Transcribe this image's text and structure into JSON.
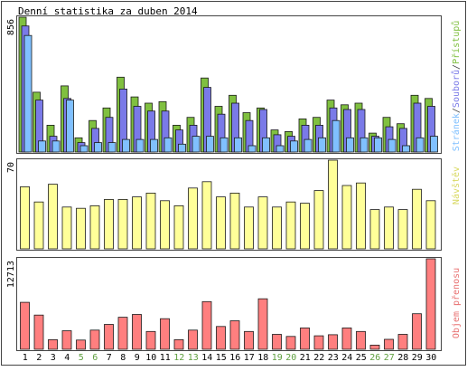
{
  "title": "Denní statistika za duben 2014",
  "colors": {
    "frame": "#444444",
    "pristupu": "#80c040",
    "souboru": "#7a7ae8",
    "stranek": "#80c0ff",
    "navstev": "#ffff99",
    "objem": "#ff7f7f",
    "weekend_label": "#60a040",
    "weekday_label": "#000000"
  },
  "weekend_days": [
    5,
    6,
    12,
    13,
    19,
    20,
    26,
    27
  ],
  "chart_data": [
    {
      "type": "bar",
      "title": "Denní statistika za duben 2014",
      "ylabel": "856",
      "ymax": 856,
      "categories": [
        "1",
        "2",
        "3",
        "4",
        "5",
        "6",
        "7",
        "8",
        "9",
        "10",
        "11",
        "12",
        "13",
        "14",
        "15",
        "16",
        "17",
        "18",
        "19",
        "20",
        "21",
        "22",
        "23",
        "24",
        "25",
        "26",
        "27",
        "28",
        "29",
        "30"
      ],
      "legend_parts": [
        {
          "text": "Stránek",
          "color": "#80c0ff"
        },
        {
          "text": "/",
          "color": "#444444"
        },
        {
          "text": "Souborů",
          "color": "#7a7ae8"
        },
        {
          "text": "/",
          "color": "#444444"
        },
        {
          "text": "Přístupů",
          "color": "#80c040"
        }
      ],
      "series": [
        {
          "name": "Přístupů",
          "values": [
            856,
            380,
            170,
            420,
            90,
            200,
            280,
            475,
            350,
            310,
            320,
            170,
            220,
            470,
            290,
            360,
            250,
            280,
            140,
            130,
            210,
            220,
            330,
            300,
            310,
            120,
            220,
            180,
            360,
            340
          ]
        },
        {
          "name": "Souborů",
          "values": [
            800,
            330,
            100,
            340,
            60,
            150,
            220,
            400,
            290,
            260,
            260,
            140,
            170,
            410,
            240,
            310,
            200,
            270,
            110,
            100,
            170,
            170,
            280,
            270,
            270,
            100,
            160,
            150,
            310,
            290
          ]
        },
        {
          "name": "Stránek",
          "values": [
            740,
            70,
            70,
            330,
            40,
            60,
            60,
            80,
            80,
            80,
            90,
            50,
            100,
            100,
            90,
            90,
            40,
            90,
            40,
            70,
            80,
            90,
            200,
            90,
            90,
            90,
            80,
            40,
            90,
            100
          ]
        }
      ]
    },
    {
      "type": "bar",
      "ylabel": "70",
      "ymax": 70,
      "categories": [
        "1",
        "2",
        "3",
        "4",
        "5",
        "6",
        "7",
        "8",
        "9",
        "10",
        "11",
        "12",
        "13",
        "14",
        "15",
        "16",
        "17",
        "18",
        "19",
        "20",
        "21",
        "22",
        "23",
        "24",
        "25",
        "26",
        "27",
        "28",
        "29",
        "30"
      ],
      "legend_parts": [
        {
          "text": "Návštěv",
          "color": "#d8d860"
        }
      ],
      "series": [
        {
          "name": "Návštěv",
          "values": [
            49,
            37,
            51,
            33,
            32,
            34,
            39,
            39,
            41,
            44,
            38,
            34,
            48,
            53,
            41,
            44,
            33,
            41,
            33,
            37,
            36,
            46,
            70,
            50,
            52,
            31,
            33,
            31,
            47,
            38
          ]
        }
      ]
    },
    {
      "type": "bar",
      "ylabel": "12713",
      "ymax": 12713,
      "categories": [
        "1",
        "2",
        "3",
        "4",
        "5",
        "6",
        "7",
        "8",
        "9",
        "10",
        "11",
        "12",
        "13",
        "14",
        "15",
        "16",
        "17",
        "18",
        "19",
        "20",
        "21",
        "22",
        "23",
        "24",
        "25",
        "26",
        "27",
        "28",
        "29",
        "30"
      ],
      "legend_parts": [
        {
          "text": "Objem přenosu",
          "color": "#e87070"
        }
      ],
      "series": [
        {
          "name": "Objem přenosu",
          "values": [
            6600,
            4800,
            1350,
            2600,
            1300,
            2700,
            3500,
            4500,
            4900,
            2500,
            4300,
            1350,
            2700,
            6700,
            3200,
            4000,
            2500,
            7100,
            2100,
            1800,
            3000,
            1900,
            2050,
            3000,
            2500,
            580,
            1400,
            2100,
            5000,
            12713
          ]
        }
      ]
    }
  ]
}
